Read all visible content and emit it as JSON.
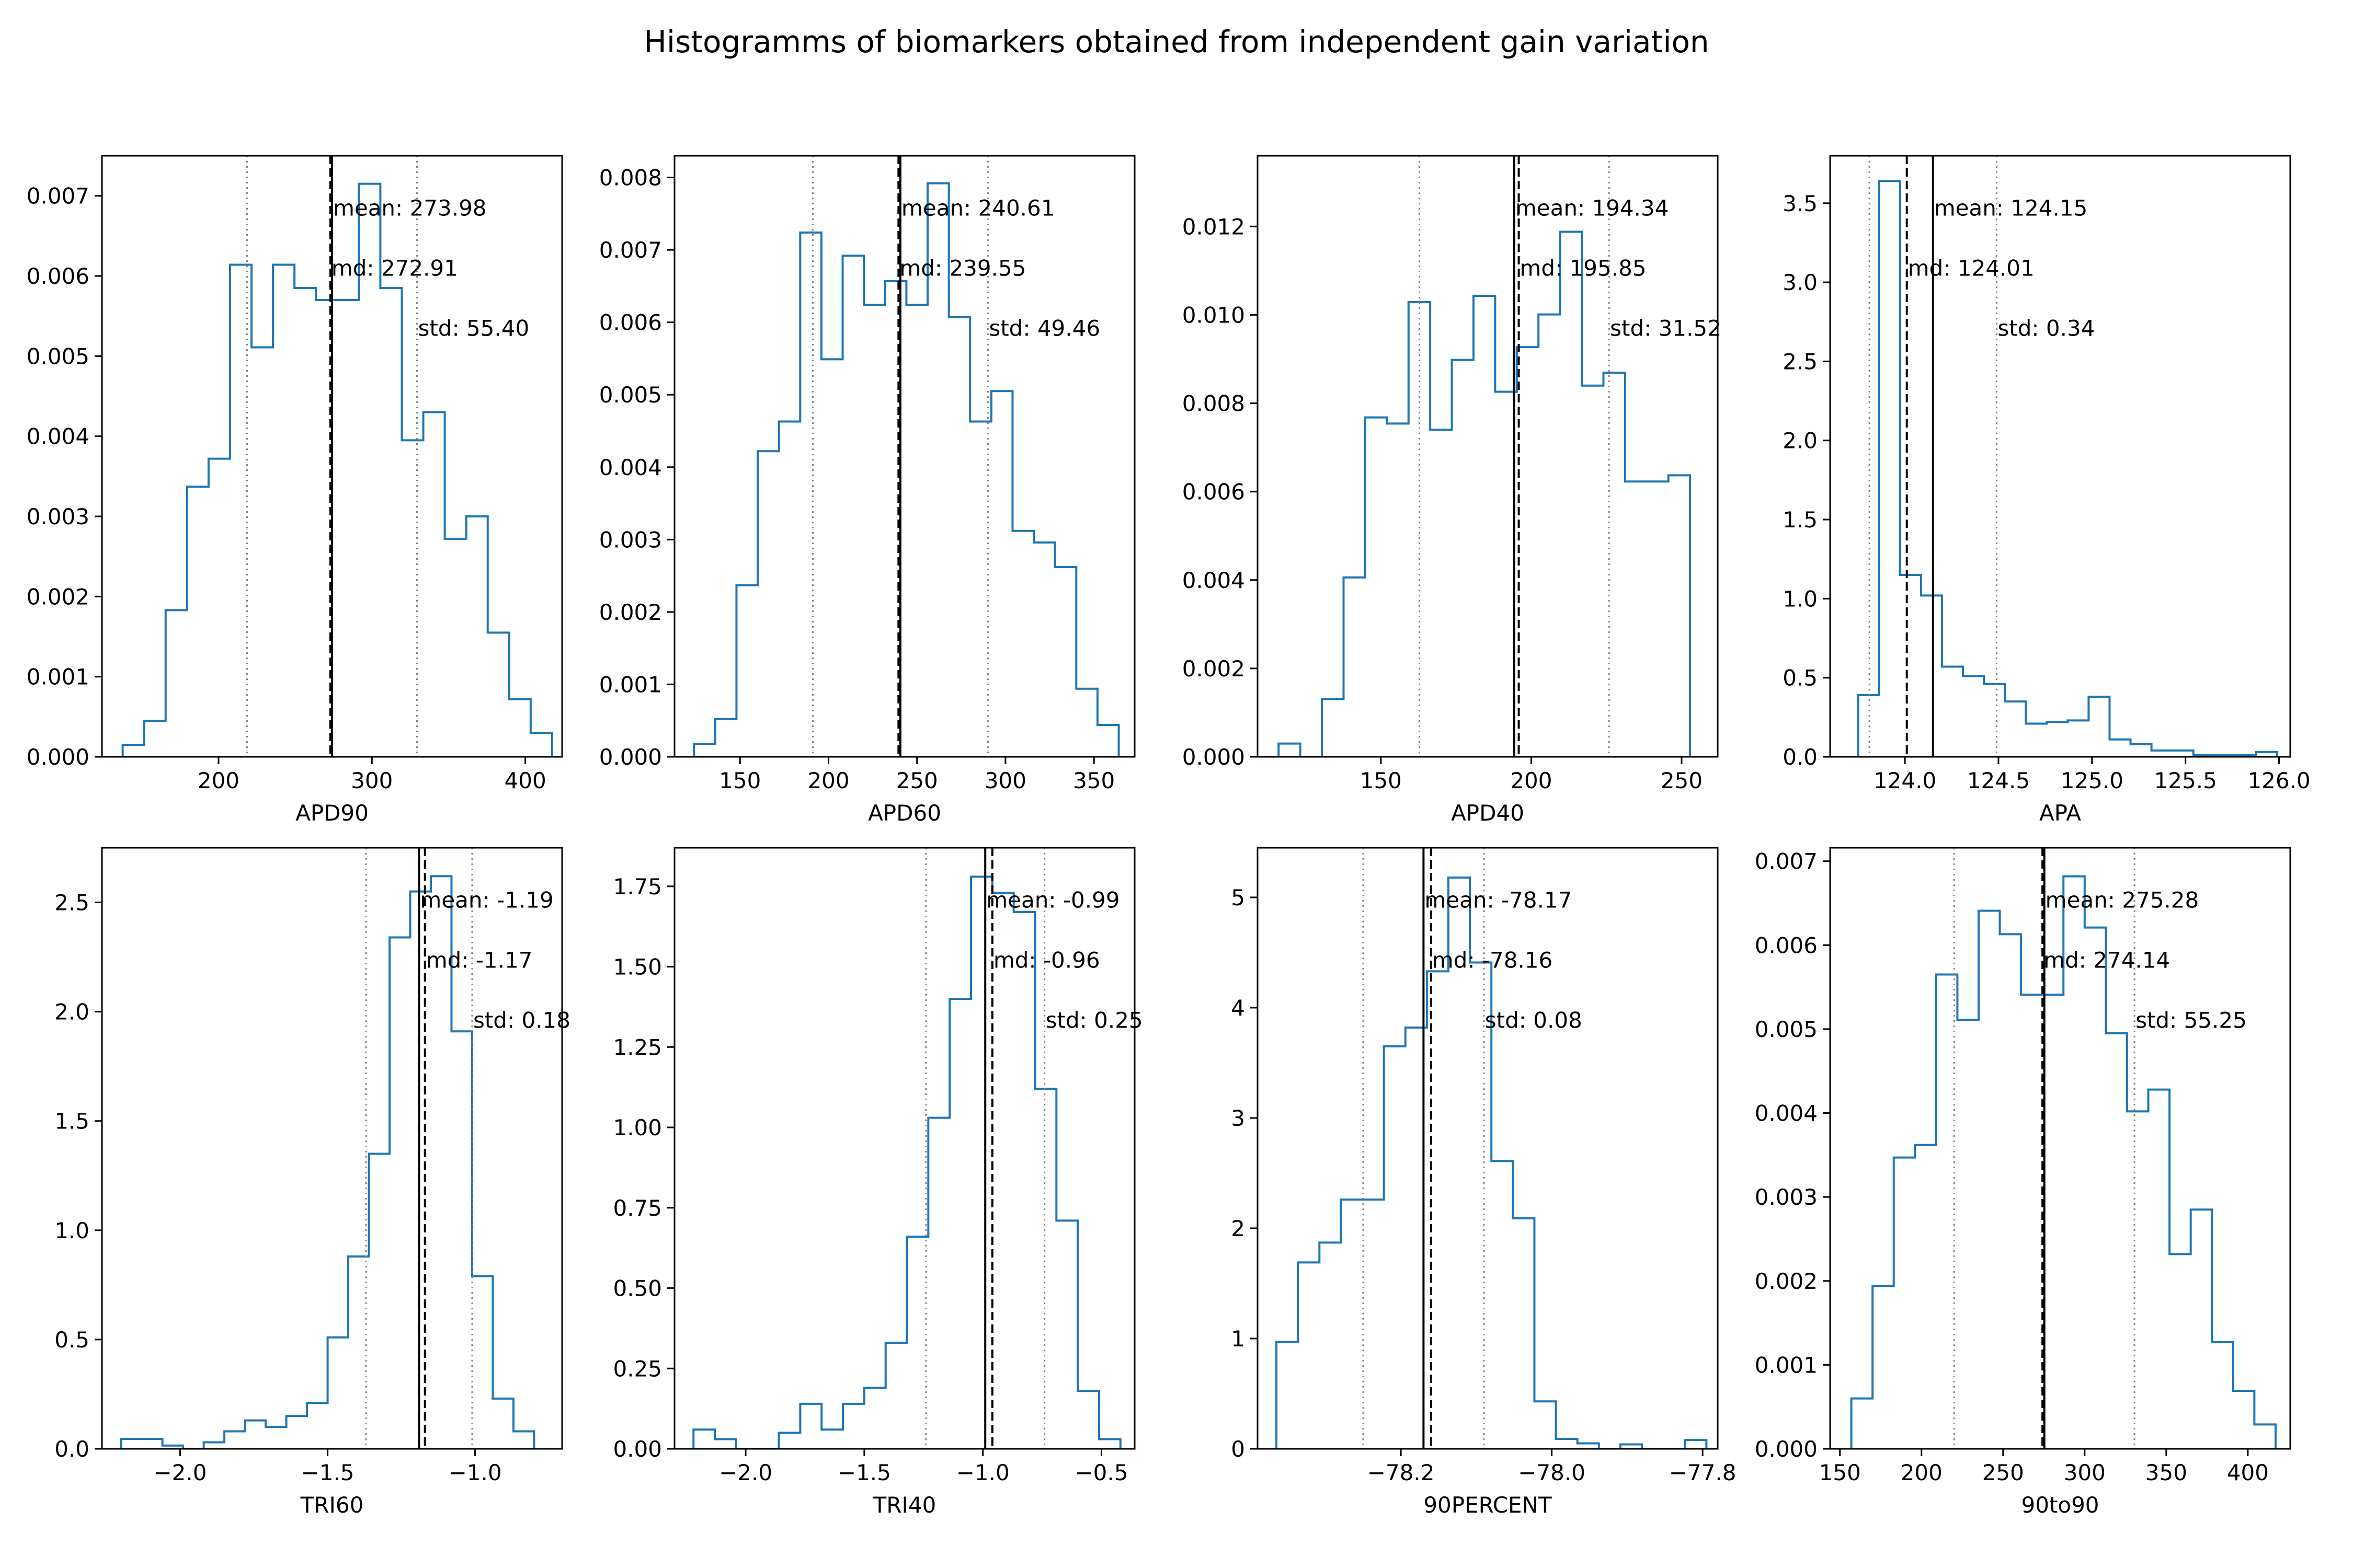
{
  "figure": {
    "title": "Histogramms of biomarkers obtained from independent gain variation",
    "colors": {
      "hist": "#1f77b4",
      "lines": "#000000",
      "std_lines": "#808080"
    }
  },
  "chart_data": [
    {
      "type": "histogram",
      "xlabel": "APD90",
      "xlim": [
        124,
        424
      ],
      "ylim": [
        0,
        0.0075
      ],
      "xticks": [
        {
          "v": 200,
          "label": "200"
        },
        {
          "v": 300,
          "label": "300"
        },
        {
          "v": 400,
          "label": "400"
        }
      ],
      "yticks": [
        {
          "v": 0,
          "label": "0.000"
        },
        {
          "v": 0.001,
          "label": "0.001"
        },
        {
          "v": 0.002,
          "label": "0.002"
        },
        {
          "v": 0.003,
          "label": "0.003"
        },
        {
          "v": 0.004,
          "label": "0.004"
        },
        {
          "v": 0.005,
          "label": "0.005"
        },
        {
          "v": 0.006,
          "label": "0.006"
        },
        {
          "v": 0.007,
          "label": "0.007"
        }
      ],
      "bin_edges": [
        137.5,
        151.5,
        165.5,
        179.5,
        193.5,
        207.5,
        221.5,
        235.5,
        249.5,
        263.5,
        277.5,
        291.5,
        305.5,
        319.5,
        333.5,
        347.5,
        361.5,
        375.5,
        389.5,
        403.5,
        417.5
      ],
      "densities": [
        0.00015,
        0.00045,
        0.00183,
        0.00337,
        0.00372,
        0.00614,
        0.00511,
        0.00614,
        0.00585,
        0.0057,
        0.0057,
        0.00715,
        0.00585,
        0.00395,
        0.0043,
        0.00272,
        0.003,
        0.00155,
        0.00072,
        0.0003
      ],
      "mean": 273.98,
      "md": 272.91,
      "std": 55.4,
      "annotations": {
        "mean": "mean: 273.98",
        "md": "md: 272.91",
        "std": "std: 55.40"
      }
    },
    {
      "type": "histogram",
      "xlabel": "APD60",
      "xlim": [
        113,
        373
      ],
      "ylim": [
        0,
        0.0083
      ],
      "xticks": [
        {
          "v": 150,
          "label": "150"
        },
        {
          "v": 200,
          "label": "200"
        },
        {
          "v": 250,
          "label": "250"
        },
        {
          "v": 300,
          "label": "300"
        },
        {
          "v": 350,
          "label": "350"
        }
      ],
      "yticks": [
        {
          "v": 0,
          "label": "0.000"
        },
        {
          "v": 0.001,
          "label": "0.001"
        },
        {
          "v": 0.002,
          "label": "0.002"
        },
        {
          "v": 0.003,
          "label": "0.003"
        },
        {
          "v": 0.004,
          "label": "0.004"
        },
        {
          "v": 0.005,
          "label": "0.005"
        },
        {
          "v": 0.006,
          "label": "0.006"
        },
        {
          "v": 0.007,
          "label": "0.007"
        },
        {
          "v": 0.008,
          "label": "0.008"
        }
      ],
      "bin_edges": [
        124,
        136,
        148,
        160,
        172,
        184,
        196,
        208,
        220,
        232,
        244,
        256,
        268,
        280,
        292,
        304,
        316,
        328,
        340,
        352,
        364
      ],
      "densities": [
        0.00018,
        0.00052,
        0.00237,
        0.00422,
        0.00463,
        0.00724,
        0.00549,
        0.00692,
        0.00624,
        0.00657,
        0.00624,
        0.00792,
        0.00607,
        0.00463,
        0.00505,
        0.00312,
        0.00296,
        0.00262,
        0.00094,
        0.00044
      ],
      "mean": 240.61,
      "md": 239.55,
      "std": 49.46,
      "annotations": {
        "mean": "mean: 240.61",
        "md": "md: 239.55",
        "std": "std: 49.46"
      }
    },
    {
      "type": "histogram",
      "xlabel": "APD40",
      "xlim": [
        109,
        262
      ],
      "ylim": [
        0,
        0.0136
      ],
      "xticks": [
        {
          "v": 150,
          "label": "150"
        },
        {
          "v": 200,
          "label": "200"
        },
        {
          "v": 250,
          "label": "250"
        }
      ],
      "yticks": [
        {
          "v": 0,
          "label": "0.000"
        },
        {
          "v": 0.002,
          "label": "0.002"
        },
        {
          "v": 0.004,
          "label": "0.004"
        },
        {
          "v": 0.006,
          "label": "0.006"
        },
        {
          "v": 0.008,
          "label": "0.008"
        },
        {
          "v": 0.01,
          "label": "0.010"
        },
        {
          "v": 0.012,
          "label": "0.012"
        }
      ],
      "bin_edges": [
        116,
        123.2,
        130.4,
        137.6,
        144.8,
        152,
        159.2,
        166.4,
        173.6,
        180.8,
        188,
        195.2,
        202.4,
        209.6,
        216.8,
        224,
        231.2,
        238.4,
        245.6,
        252.8
      ],
      "densities": [
        0.0003,
        0,
        0.00131,
        0.00406,
        0.00768,
        0.00754,
        0.01029,
        0.0074,
        0.00898,
        0.01043,
        0.00826,
        0.00927,
        0.01001,
        0.01188,
        0.0084,
        0.00869,
        0.00623,
        0.00623,
        0.00637
      ],
      "mean": 194.34,
      "md": 195.85,
      "std": 31.52,
      "annotations": {
        "mean": "mean: 194.34",
        "md": "md: 195.85",
        "std": "std: 31.52"
      }
    },
    {
      "type": "histogram",
      "xlabel": "APA",
      "xlim": [
        123.6,
        126.06
      ],
      "ylim": [
        0,
        3.8
      ],
      "xticks": [
        {
          "v": 124.0,
          "label": "124.0"
        },
        {
          "v": 124.5,
          "label": "124.5"
        },
        {
          "v": 125.0,
          "label": "125.0"
        },
        {
          "v": 125.5,
          "label": "125.5"
        },
        {
          "v": 126.0,
          "label": "126.0"
        }
      ],
      "yticks": [
        {
          "v": 0,
          "label": "0.0"
        },
        {
          "v": 0.5,
          "label": "0.5"
        },
        {
          "v": 1.0,
          "label": "1.0"
        },
        {
          "v": 1.5,
          "label": "1.5"
        },
        {
          "v": 2.0,
          "label": "2.0"
        },
        {
          "v": 2.5,
          "label": "2.5"
        },
        {
          "v": 3.0,
          "label": "3.0"
        },
        {
          "v": 3.5,
          "label": "3.5"
        }
      ],
      "bin_edges": [
        123.75,
        123.862,
        123.974,
        124.086,
        124.198,
        124.31,
        124.422,
        124.534,
        124.646,
        124.758,
        124.87,
        124.982,
        125.094,
        125.206,
        125.318,
        125.43,
        125.542,
        125.654,
        125.766,
        125.878,
        125.99
      ],
      "densities": [
        0.39,
        3.64,
        1.15,
        1.02,
        0.57,
        0.51,
        0.46,
        0.35,
        0.21,
        0.22,
        0.23,
        0.38,
        0.11,
        0.08,
        0.04,
        0.04,
        0.01,
        0.01,
        0.01,
        0.03
      ],
      "mean": 124.15,
      "md": 124.01,
      "std": 0.34,
      "annotations": {
        "mean": "mean: 124.15",
        "md": "md: 124.01",
        "std": "std: 0.34"
      }
    },
    {
      "type": "histogram",
      "xlabel": "TRI60",
      "xlim": [
        -2.265,
        -0.705
      ],
      "ylim": [
        0,
        2.75
      ],
      "xticks": [
        {
          "v": -2.0,
          "label": "−2.0"
        },
        {
          "v": -1.5,
          "label": "−1.5"
        },
        {
          "v": -1.0,
          "label": "−1.0"
        }
      ],
      "yticks": [
        {
          "v": 0,
          "label": "0.0"
        },
        {
          "v": 0.5,
          "label": "0.5"
        },
        {
          "v": 1.0,
          "label": "1.0"
        },
        {
          "v": 1.5,
          "label": "1.5"
        },
        {
          "v": 2.0,
          "label": "2.0"
        },
        {
          "v": 2.5,
          "label": "2.5"
        }
      ],
      "bin_edges": [
        -2.2,
        -2.13,
        -2.06,
        -1.99,
        -1.92,
        -1.85,
        -1.78,
        -1.71,
        -1.64,
        -1.57,
        -1.5,
        -1.43,
        -1.36,
        -1.29,
        -1.22,
        -1.15,
        -1.08,
        -1.01,
        -0.94,
        -0.87,
        -0.8
      ],
      "densities": [
        0.045,
        0.045,
        0.015,
        0.0,
        0.03,
        0.08,
        0.13,
        0.1,
        0.15,
        0.21,
        0.51,
        0.88,
        1.35,
        2.34,
        2.55,
        2.62,
        1.91,
        0.79,
        0.23,
        0.08
      ],
      "mean": -1.19,
      "md": -1.17,
      "std": 0.18,
      "annotations": {
        "mean": "mean: -1.19",
        "md": "md: -1.17",
        "std": "std: 0.18"
      }
    },
    {
      "type": "histogram",
      "xlabel": "TRI40",
      "xlim": [
        -2.3,
        -0.36
      ],
      "ylim": [
        0,
        1.87
      ],
      "xticks": [
        {
          "v": -2.0,
          "label": "−2.0"
        },
        {
          "v": -1.5,
          "label": "−1.5"
        },
        {
          "v": -1.0,
          "label": "−1.0"
        },
        {
          "v": -0.5,
          "label": "−0.5"
        }
      ],
      "yticks": [
        {
          "v": 0,
          "label": "0.00"
        },
        {
          "v": 0.25,
          "label": "0.25"
        },
        {
          "v": 0.5,
          "label": "0.50"
        },
        {
          "v": 0.75,
          "label": "0.75"
        },
        {
          "v": 1.0,
          "label": "1.00"
        },
        {
          "v": 1.25,
          "label": "1.25"
        },
        {
          "v": 1.5,
          "label": "1.50"
        },
        {
          "v": 1.75,
          "label": "1.75"
        }
      ],
      "bin_edges": [
        -2.22,
        -2.13,
        -2.04,
        -1.95,
        -1.86,
        -1.77,
        -1.68,
        -1.59,
        -1.5,
        -1.41,
        -1.32,
        -1.23,
        -1.14,
        -1.05,
        -0.96,
        -0.87,
        -0.78,
        -0.69,
        -0.6,
        -0.51,
        -0.42
      ],
      "densities": [
        0.06,
        0.03,
        0.0,
        0.0,
        0.05,
        0.14,
        0.06,
        0.14,
        0.19,
        0.33,
        0.66,
        1.03,
        1.4,
        1.78,
        1.73,
        1.67,
        1.12,
        0.71,
        0.18,
        0.03
      ],
      "mean": -0.99,
      "md": -0.96,
      "std": 0.25,
      "annotations": {
        "mean": "mean: -0.99",
        "md": "md: -0.96",
        "std": "std: 0.25"
      }
    },
    {
      "type": "histogram",
      "xlabel": "90PERCENT",
      "xlim": [
        -78.39,
        -77.78
      ],
      "ylim": [
        0,
        5.45
      ],
      "xticks": [
        {
          "v": -78.2,
          "label": "−78.2"
        },
        {
          "v": -78.0,
          "label": "−78.0"
        },
        {
          "v": -77.8,
          "label": "−77.8"
        }
      ],
      "yticks": [
        {
          "v": 0,
          "label": "0"
        },
        {
          "v": 1,
          "label": "1"
        },
        {
          "v": 2,
          "label": "2"
        },
        {
          "v": 3,
          "label": "3"
        },
        {
          "v": 4,
          "label": "4"
        },
        {
          "v": 5,
          "label": "5"
        }
      ],
      "bin_edges": [
        -78.365,
        -78.3365,
        -78.308,
        -78.2795,
        -78.251,
        -78.2225,
        -78.194,
        -78.1655,
        -78.137,
        -78.1085,
        -78.08,
        -78.0515,
        -78.023,
        -77.9945,
        -77.966,
        -77.9375,
        -77.909,
        -77.8805,
        -77.852,
        -77.8235,
        -77.795
      ],
      "densities": [
        0.97,
        1.69,
        1.87,
        2.26,
        2.26,
        3.65,
        3.82,
        4.33,
        5.18,
        4.41,
        2.61,
        2.09,
        0.43,
        0.09,
        0.05,
        0.0,
        0.04,
        0.0,
        0.0,
        0.08
      ],
      "mean": -78.17,
      "md": -78.16,
      "std": 0.08,
      "annotations": {
        "mean": "mean: -78.17",
        "md": "md: -78.16",
        "std": "std: 0.08"
      }
    },
    {
      "type": "histogram",
      "xlabel": "90to90",
      "xlim": [
        144,
        426
      ],
      "ylim": [
        0,
        0.00716
      ],
      "xticks": [
        {
          "v": 150,
          "label": "150"
        },
        {
          "v": 200,
          "label": "200"
        },
        {
          "v": 250,
          "label": "250"
        },
        {
          "v": 300,
          "label": "300"
        },
        {
          "v": 350,
          "label": "350"
        },
        {
          "v": 400,
          "label": "400"
        }
      ],
      "yticks": [
        {
          "v": 0,
          "label": "0.000"
        },
        {
          "v": 0.001,
          "label": "0.001"
        },
        {
          "v": 0.002,
          "label": "0.002"
        },
        {
          "v": 0.003,
          "label": "0.003"
        },
        {
          "v": 0.004,
          "label": "0.004"
        },
        {
          "v": 0.005,
          "label": "0.005"
        },
        {
          "v": 0.006,
          "label": "0.006"
        },
        {
          "v": 0.007,
          "label": "0.007"
        }
      ],
      "bin_edges": [
        157,
        170,
        183,
        196,
        209,
        222,
        235,
        248,
        261,
        274,
        287,
        300,
        313,
        326,
        339,
        352,
        365,
        378,
        391,
        404,
        417
      ],
      "densities": [
        0.0006,
        0.00194,
        0.00347,
        0.00362,
        0.00565,
        0.00511,
        0.00641,
        0.00613,
        0.00541,
        0.00541,
        0.00682,
        0.00621,
        0.00495,
        0.00402,
        0.00428,
        0.00232,
        0.00285,
        0.00127,
        0.00069,
        0.00029
      ],
      "mean": 275.28,
      "md": 274.14,
      "std": 55.25,
      "annotations": {
        "mean": "mean: 275.28",
        "md": "md: 274.14",
        "std": "std: 55.25"
      }
    }
  ]
}
